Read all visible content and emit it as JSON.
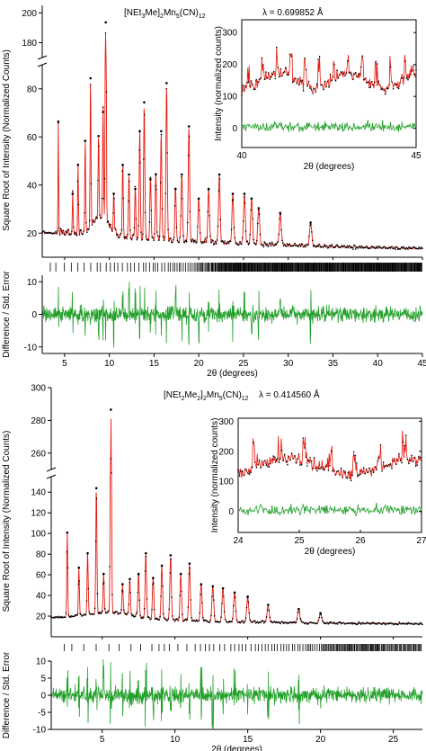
{
  "chart_data": [
    {
      "type": "line",
      "panel": "top",
      "title_parts": [
        "[NEt",
        "3",
        "Me]",
        "2",
        "Mn",
        "5",
        "(CN)",
        "12"
      ],
      "wavelength": "λ = 0.699852 Å",
      "xlabel": "2θ (degrees)",
      "ylabel": "Square Root of Intensity (Normalized Counts)",
      "diff_ylabel": "Difference / Std. Error",
      "xlim": [
        2.5,
        45
      ],
      "x_ticks": [
        5,
        10,
        15,
        20,
        25,
        30,
        35,
        40,
        45
      ],
      "y_ticks_lower": [
        20,
        40,
        60,
        80
      ],
      "y_ticks_upper": [
        180,
        200
      ],
      "diff_ticks": [
        -10,
        0,
        10
      ],
      "series": [
        {
          "name": "observed",
          "color": "#000000",
          "style": "points"
        },
        {
          "name": "calculated",
          "color": "#e8190e",
          "style": "line"
        },
        {
          "name": "difference",
          "color": "#22a02a",
          "style": "line"
        },
        {
          "name": "reflections",
          "color": "#000000",
          "style": "ticks"
        }
      ],
      "peaks": [
        [
          4.3,
          66
        ],
        [
          5.9,
          36
        ],
        [
          6.5,
          48
        ],
        [
          7.3,
          58
        ],
        [
          7.9,
          84
        ],
        [
          8.8,
          60
        ],
        [
          9.3,
          70
        ],
        [
          9.6,
          193
        ],
        [
          10.5,
          36
        ],
        [
          11.5,
          48
        ],
        [
          12.2,
          44
        ],
        [
          12.9,
          38
        ],
        [
          13.4,
          62
        ],
        [
          13.9,
          74
        ],
        [
          14.6,
          42
        ],
        [
          15.2,
          44
        ],
        [
          15.8,
          62
        ],
        [
          16.4,
          82
        ],
        [
          17.4,
          38
        ],
        [
          18.1,
          44
        ],
        [
          18.9,
          64
        ],
        [
          20.0,
          34
        ],
        [
          21.1,
          38
        ],
        [
          22.3,
          44
        ],
        [
          23.8,
          36
        ],
        [
          25.1,
          36
        ],
        [
          25.9,
          34
        ],
        [
          26.7,
          30
        ],
        [
          29.1,
          28
        ],
        [
          32.5,
          24
        ]
      ],
      "inset": {
        "xlim": [
          40,
          45
        ],
        "x_ticks": [
          40,
          45
        ],
        "y_ticks": [
          0,
          100,
          200,
          300
        ],
        "xlabel": "2θ (degrees)",
        "ylabel": "Intensity (normalized counts)"
      }
    },
    {
      "type": "line",
      "panel": "bottom",
      "title_parts": [
        "[NEt",
        "2",
        "Me",
        "2",
        "]",
        "2",
        "Mn",
        "5",
        "(CN)",
        "12"
      ],
      "wavelength": "λ = 0.414560 Å",
      "xlabel": "2θ (degrees)",
      "ylabel": "Square Root of Intensity (Normalized Counts)",
      "diff_ylabel": "Difference / Std. Error",
      "xlim": [
        1.5,
        27
      ],
      "x_ticks": [
        5,
        10,
        15,
        20,
        25
      ],
      "y_ticks_lower": [
        20,
        40,
        60,
        80,
        100,
        120,
        140
      ],
      "y_ticks_upper": [
        260,
        280,
        300
      ],
      "diff_ticks": [
        -10,
        -5,
        0,
        5,
        10
      ],
      "series": [
        {
          "name": "observed",
          "color": "#000000",
          "style": "points"
        },
        {
          "name": "calculated",
          "color": "#e8190e",
          "style": "line"
        },
        {
          "name": "difference",
          "color": "#22a02a",
          "style": "line"
        },
        {
          "name": "reflections",
          "color": "#000000",
          "style": "ticks"
        }
      ],
      "peaks": [
        [
          2.6,
          100
        ],
        [
          3.4,
          66
        ],
        [
          4.0,
          80
        ],
        [
          4.6,
          143
        ],
        [
          5.1,
          60
        ],
        [
          5.6,
          286
        ],
        [
          6.4,
          50
        ],
        [
          6.9,
          55
        ],
        [
          7.5,
          60
        ],
        [
          8.0,
          80
        ],
        [
          8.5,
          56
        ],
        [
          9.1,
          68
        ],
        [
          9.7,
          78
        ],
        [
          10.4,
          60
        ],
        [
          11.0,
          70
        ],
        [
          11.8,
          50
        ],
        [
          12.6,
          48
        ],
        [
          13.3,
          46
        ],
        [
          14.1,
          42
        ],
        [
          15.0,
          38
        ],
        [
          16.4,
          30
        ],
        [
          18.5,
          26
        ],
        [
          20.0,
          22
        ]
      ],
      "inset": {
        "xlim": [
          24,
          27
        ],
        "x_ticks": [
          24,
          25,
          26,
          27
        ],
        "y_ticks": [
          0,
          100,
          200,
          300
        ],
        "xlabel": "2θ (degrees)",
        "ylabel": "Intensity (normalized counts)"
      }
    }
  ]
}
